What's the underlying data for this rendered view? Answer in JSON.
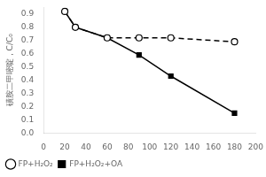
{
  "chart_data": {
    "type": "line",
    "ylabel": "磺胺二甲嘧啶，C/C₀",
    "x": [
      20,
      30,
      60,
      90,
      120,
      180
    ],
    "series": [
      {
        "name": "FP+H₂O₂",
        "color": "#000000",
        "marker": "circle",
        "line_style": "dashed",
        "values": [
          0.92,
          0.8,
          0.72,
          0.72,
          0.72,
          0.69
        ]
      },
      {
        "name": "FP+H₂O₂+OA",
        "color": "#000000",
        "marker": "square",
        "line_style": "solid",
        "values": [
          0.92,
          0.8,
          0.72,
          0.59,
          0.43,
          0.15
        ]
      }
    ],
    "xlim": [
      0,
      200
    ],
    "xticks": [
      0,
      20,
      40,
      60,
      80,
      100,
      120,
      140,
      160,
      180,
      200
    ],
    "ylim": [
      0.0,
      0.95
    ],
    "yticks": [
      {
        "value": 0.0,
        "label": "0.0"
      },
      0.1,
      0.2,
      0.3,
      0.4,
      0.5,
      0.6,
      0.7,
      0.8,
      0.9
    ],
    "grid": false,
    "legend": "lower left"
  }
}
